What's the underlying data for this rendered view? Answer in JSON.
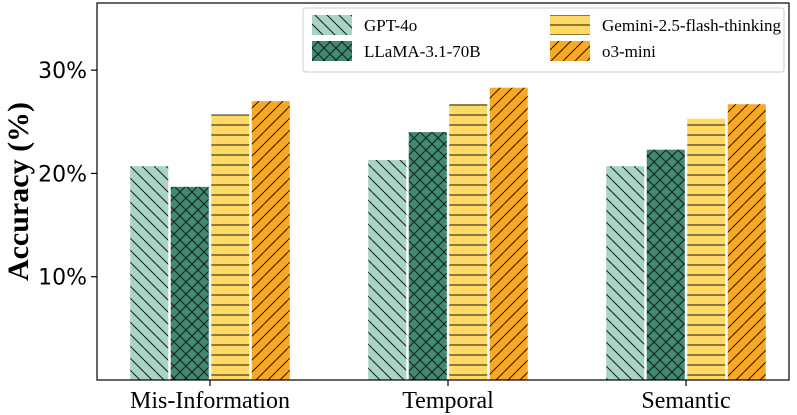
{
  "chart_data": {
    "type": "bar",
    "title": "",
    "xlabel": "",
    "ylabel": "Accuracy (%)",
    "ylim": [
      0,
      36.5
    ],
    "yticks": [
      10,
      20,
      30
    ],
    "ytick_labels": [
      "10%",
      "20%",
      "30%"
    ],
    "categories": [
      "Mis-Information",
      "Temporal",
      "Semantic"
    ],
    "series": [
      {
        "name": "GPT-4o",
        "values": [
          20.7,
          21.3,
          20.7
        ],
        "color": "#a6d4c6",
        "hatch": "backslash"
      },
      {
        "name": "LLaMA-3.1-70B",
        "values": [
          18.7,
          24.0,
          22.3
        ],
        "color": "#3f8a72",
        "hatch": "cross"
      },
      {
        "name": "Gemini-2.5-flash-thinking",
        "values": [
          25.7,
          26.7,
          25.3
        ],
        "color": "#ffd966",
        "hatch": "horizontal"
      },
      {
        "name": "o3-mini",
        "values": [
          27.0,
          28.3,
          26.7
        ],
        "color": "#f9a825",
        "hatch": "slash"
      }
    ],
    "legend": {
      "position": "top-right",
      "columns": 2
    },
    "grid": false
  }
}
